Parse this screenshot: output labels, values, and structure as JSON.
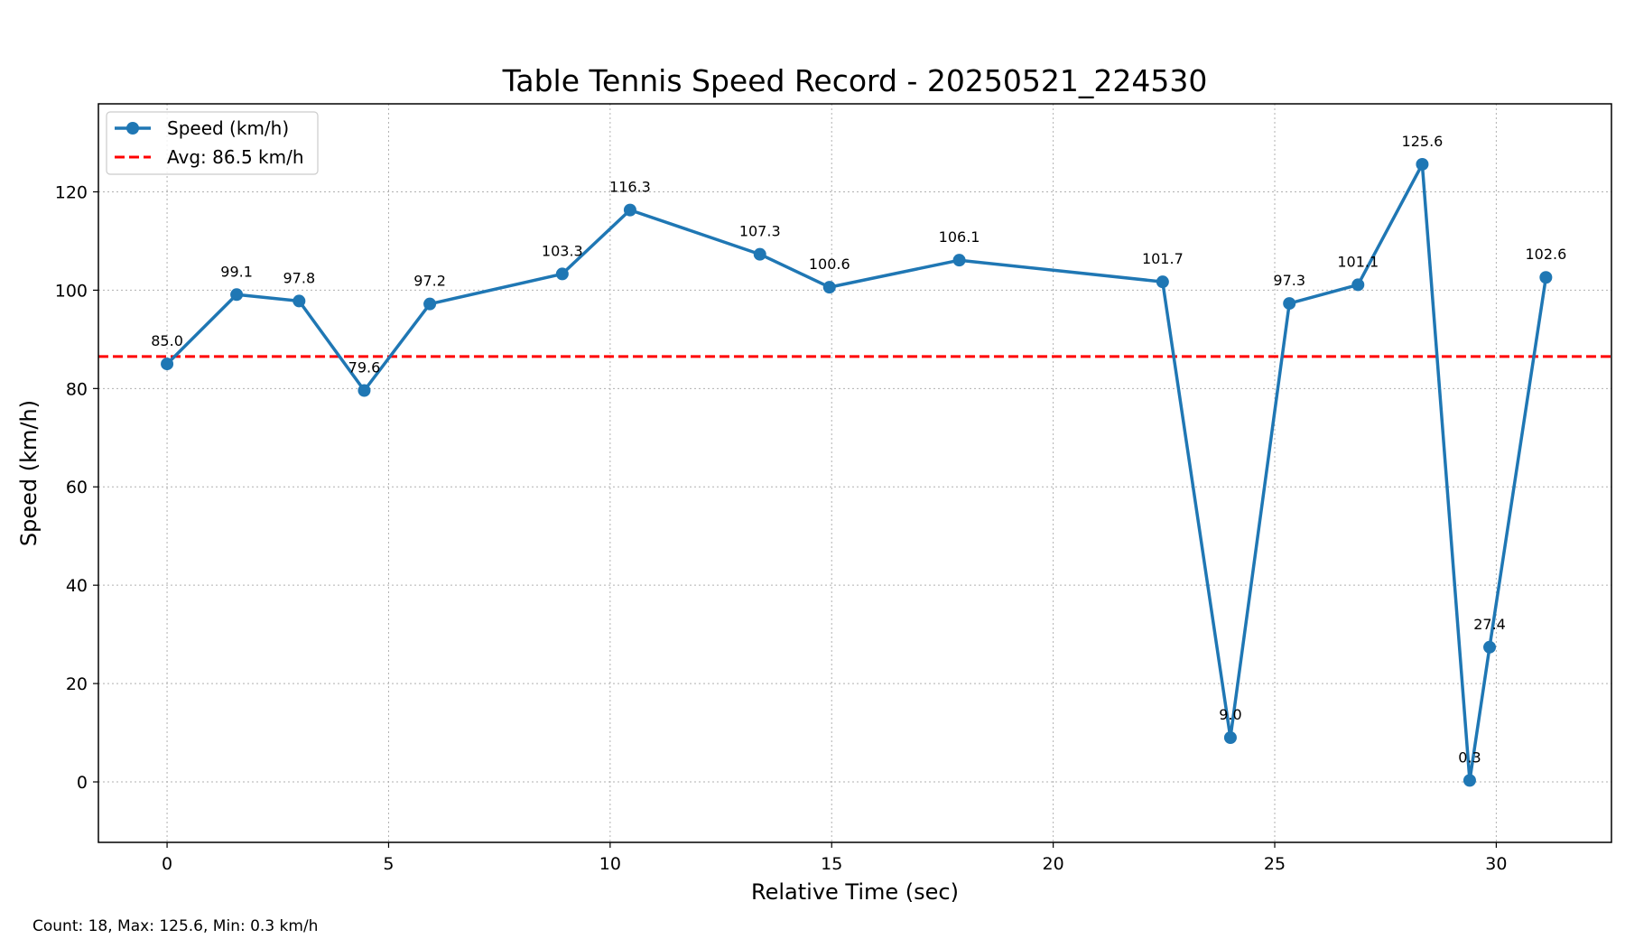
{
  "chart_data": {
    "type": "line",
    "title": "Table Tennis Speed Record - 20250521_224530",
    "xlabel": "Relative Time (sec)",
    "ylabel": "Speed (km/h)",
    "xlim": [
      -1.55,
      32.6
    ],
    "ylim": [
      -12.3,
      137.9
    ],
    "xticks": [
      0,
      5,
      10,
      15,
      20,
      25,
      30
    ],
    "yticks": [
      0,
      20,
      40,
      60,
      80,
      100,
      120
    ],
    "grid": true,
    "legend_position": "top-left",
    "series": [
      {
        "name": "Speed (km/h)",
        "color": "#1f77b4",
        "x": [
          0.0,
          1.57,
          2.98,
          4.45,
          5.93,
          8.92,
          10.45,
          13.38,
          14.95,
          17.88,
          22.47,
          24.0,
          25.33,
          26.88,
          28.33,
          29.4,
          29.85,
          31.12
        ],
        "values": [
          85.0,
          99.1,
          97.8,
          79.6,
          97.2,
          103.3,
          116.3,
          107.3,
          100.6,
          106.1,
          101.7,
          9.0,
          97.3,
          101.1,
          125.6,
          0.3,
          27.4,
          102.6
        ],
        "labels": [
          "85.0",
          "99.1",
          "97.8",
          "79.6",
          "97.2",
          "103.3",
          "116.3",
          "107.3",
          "100.6",
          "106.1",
          "101.7",
          "9.0",
          "97.3",
          "101.1",
          "125.6",
          "0.3",
          "27.4",
          "102.6"
        ]
      }
    ],
    "average": {
      "name": "Avg: 86.5 km/h",
      "value": 86.5,
      "color": "#ff0000"
    }
  },
  "footer": {
    "stats": "Count: 18, Max: 125.6, Min: 0.3 km/h"
  }
}
